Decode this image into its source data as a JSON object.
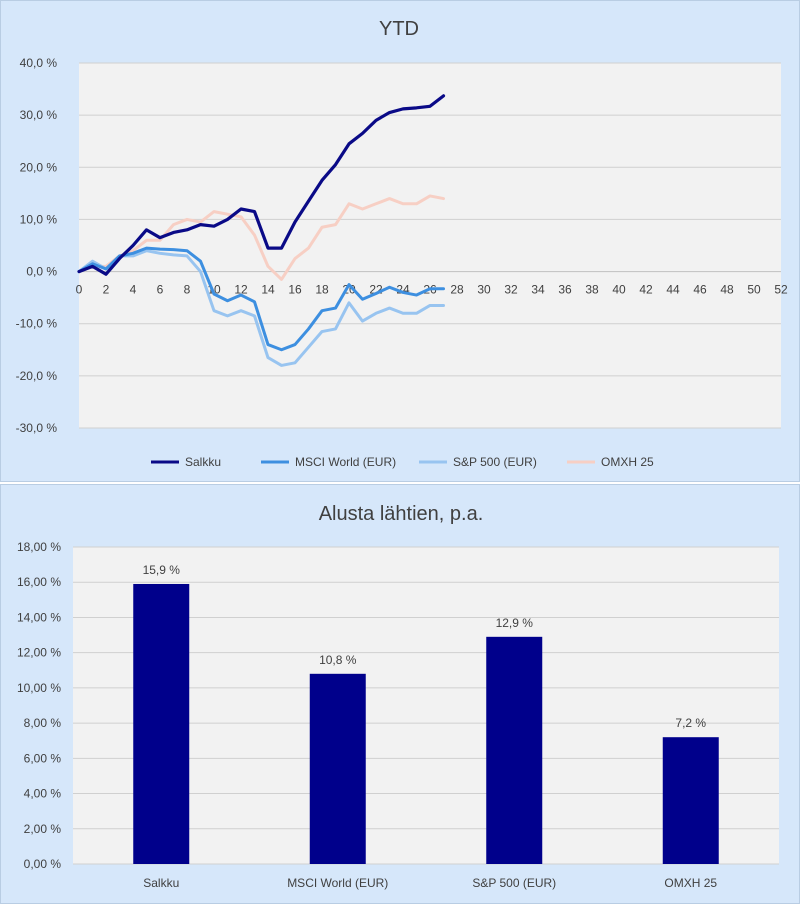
{
  "chart_data": [
    {
      "type": "line",
      "title": "YTD",
      "xlabel": "",
      "ylabel": "",
      "xlim": [
        0,
        52
      ],
      "ylim": [
        -30,
        40
      ],
      "x_ticks": [
        "0",
        "2",
        "4",
        "6",
        "8",
        "10",
        "12",
        "14",
        "16",
        "18",
        "20",
        "22",
        "24",
        "26",
        "28",
        "30",
        "32",
        "34",
        "36",
        "38",
        "40",
        "42",
        "44",
        "46",
        "48",
        "50",
        "52"
      ],
      "y_ticks": [
        "40,0 %",
        "30,0 %",
        "20,0 %",
        "10,0 %",
        "0,0 %",
        "-10,0 %",
        "-20,0 %",
        "-30,0 %"
      ],
      "grid": true,
      "legend_position": "bottom",
      "x": [
        0,
        1,
        2,
        3,
        4,
        5,
        6,
        7,
        8,
        9,
        10,
        11,
        12,
        13,
        14,
        15,
        16,
        17,
        18,
        19,
        20,
        21,
        22,
        23,
        24,
        25,
        26,
        27
      ],
      "series": [
        {
          "name": "Salkku",
          "color": "#0a0a87",
          "values": [
            0,
            1,
            -0.5,
            2.5,
            5,
            8,
            6.5,
            7.5,
            8,
            9,
            8.7,
            10,
            12,
            11.5,
            4.5,
            4.5,
            9.5,
            13.5,
            17.5,
            20.5,
            24.5,
            26.5,
            29,
            30.5,
            31.2,
            31.4,
            31.7,
            33.7
          ]
        },
        {
          "name": "MSCI World (EUR)",
          "color": "#3d8fe0",
          "values": [
            0,
            1.5,
            0.5,
            3,
            3.5,
            4.5,
            4.3,
            4.2,
            4,
            2,
            -4.3,
            -5.6,
            -4.5,
            -5.8,
            -14,
            -15,
            -14,
            -11,
            -7.5,
            -7,
            -2.5,
            -5.3,
            -4.2,
            -3,
            -4,
            -4.5,
            -3.3,
            -3.3
          ]
        },
        {
          "name": "S&P 500 (EUR)",
          "color": "#98c4f0",
          "values": [
            0,
            2,
            0.5,
            3,
            3,
            4,
            3.5,
            3.2,
            3,
            0,
            -7.5,
            -8.5,
            -7.5,
            -8.5,
            -16.5,
            -18,
            -17.5,
            -14.5,
            -11.5,
            -11,
            -6,
            -9.5,
            -8,
            -7,
            -8,
            -8,
            -6.5,
            -6.5
          ]
        },
        {
          "name": "OMXH 25",
          "color": "#f7cfc4",
          "values": [
            0,
            1,
            1,
            3,
            4,
            6,
            6,
            9,
            10,
            9.5,
            11.5,
            11,
            10.5,
            7,
            1,
            -1.5,
            2.5,
            4.5,
            8.5,
            9,
            13,
            12,
            13,
            14,
            13,
            13,
            14.5,
            14
          ]
        }
      ]
    },
    {
      "type": "bar",
      "title": "Alusta lähtien, p.a.",
      "xlabel": "",
      "ylabel": "",
      "ylim": [
        0,
        18
      ],
      "y_ticks": [
        "18,00 %",
        "16,00 %",
        "14,00 %",
        "12,00 %",
        "10,00 %",
        "8,00 %",
        "6,00 %",
        "4,00 %",
        "2,00 %",
        "0,00 %"
      ],
      "grid": true,
      "bar_color": "#00008b",
      "categories": [
        "Salkku",
        "MSCI World (EUR)",
        "S&P 500 (EUR)",
        "OMXH 25"
      ],
      "values": [
        15.9,
        10.8,
        12.9,
        7.2
      ],
      "data_labels": [
        "15,9 %",
        "10,8 %",
        "12,9 %",
        "7,2 %"
      ]
    }
  ]
}
